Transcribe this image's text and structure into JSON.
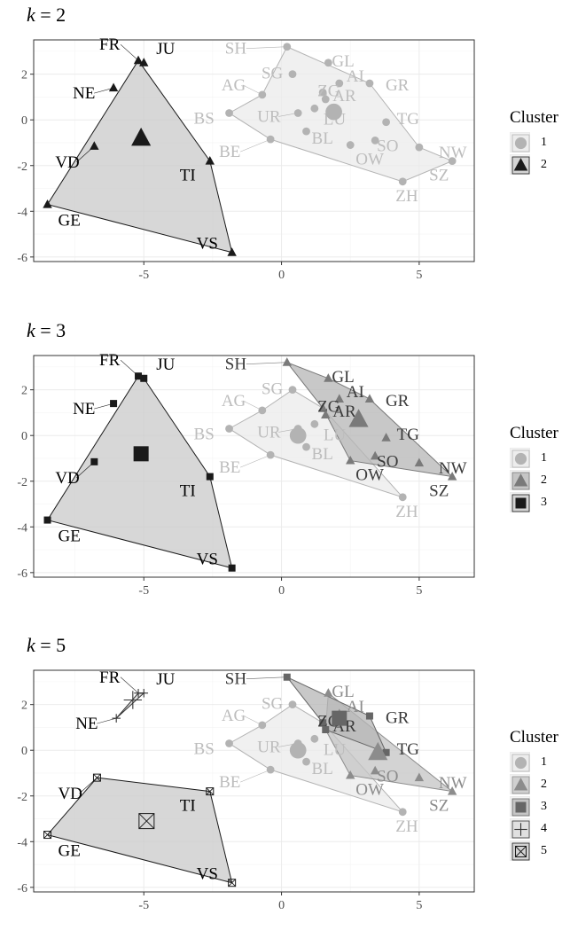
{
  "chart_data": [
    {
      "type": "scatter",
      "title_var": "k",
      "title_value": "= 2",
      "xlim": [
        -9,
        7
      ],
      "ylim": [
        -6.2,
        3.5
      ],
      "xticks": [
        "-5",
        "0",
        "5"
      ],
      "xtick_values": [
        -5,
        0,
        5
      ],
      "yticks": [
        "2",
        "0",
        "-2",
        "-4",
        "-6"
      ],
      "ytick_values": [
        2,
        0,
        -2,
        -4,
        -6
      ],
      "legend_title": "Cluster",
      "legend": [
        {
          "label": "1",
          "shape": "circle",
          "color": "#b3b3b3"
        },
        {
          "label": "2",
          "shape": "triangle",
          "color": "#1a1a1a"
        }
      ],
      "clusters": [
        {
          "id": 1,
          "color": "#b3b3b3",
          "fill": "#ebebeb",
          "text_color": "#bdbdbd",
          "shape": "circle",
          "centroid": [
            1.9,
            0.35
          ],
          "hull": [
            "SH",
            "GR",
            "NW",
            "SZ",
            "ZH",
            "BE",
            "BS",
            "AG"
          ]
        },
        {
          "id": 2,
          "color": "#1a1a1a",
          "fill": "#c9c9c9",
          "text_color": "#000000",
          "shape": "triangle",
          "centroid": [
            -5.1,
            -0.8
          ],
          "hull": [
            "FR",
            "TI",
            "VS",
            "GE"
          ]
        }
      ],
      "points": [
        {
          "label": "SH",
          "x": 0.2,
          "y": 3.2,
          "c": 1
        },
        {
          "label": "GL",
          "x": 1.7,
          "y": 2.5,
          "c": 1
        },
        {
          "label": "AI",
          "x": 2.1,
          "y": 1.6,
          "c": 1
        },
        {
          "label": "GR",
          "x": 3.2,
          "y": 1.6,
          "c": 1
        },
        {
          "label": "SG",
          "x": 0.4,
          "y": 2.0,
          "c": 1
        },
        {
          "label": "ZG",
          "x": 1.5,
          "y": 1.2,
          "c": 1
        },
        {
          "label": "AR",
          "x": 1.6,
          "y": 0.9,
          "c": 1
        },
        {
          "label": "TG",
          "x": 3.8,
          "y": -0.1,
          "c": 1
        },
        {
          "label": "AG",
          "x": -0.7,
          "y": 1.1,
          "c": 1
        },
        {
          "label": "UR",
          "x": 0.6,
          "y": 0.3,
          "c": 1
        },
        {
          "label": "BS",
          "x": -1.9,
          "y": 0.3,
          "c": 1
        },
        {
          "label": "BL",
          "x": 0.9,
          "y": -0.5,
          "c": 1
        },
        {
          "label": "SO",
          "x": 3.4,
          "y": -0.9,
          "c": 1
        },
        {
          "label": "NW",
          "x": 5.0,
          "y": -1.2,
          "c": 1
        },
        {
          "label": "LU",
          "x": 1.2,
          "y": 0.5,
          "c": 1
        },
        {
          "label": "BE",
          "x": -0.4,
          "y": -0.85,
          "c": 1
        },
        {
          "label": "OW",
          "x": 2.5,
          "y": -1.1,
          "c": 1
        },
        {
          "label": "SZ",
          "x": 6.2,
          "y": -1.8,
          "c": 1
        },
        {
          "label": "ZH",
          "x": 4.4,
          "y": -2.7,
          "c": 1
        },
        {
          "label": "FR",
          "x": -5.2,
          "y": 2.6,
          "c": 2
        },
        {
          "label": "JU",
          "x": -5.0,
          "y": 2.5,
          "c": 2
        },
        {
          "label": "NE",
          "x": -6.1,
          "y": 1.4,
          "c": 2
        },
        {
          "label": "VD",
          "x": -6.8,
          "y": -1.15,
          "c": 2
        },
        {
          "label": "TI",
          "x": -2.6,
          "y": -1.8,
          "c": 2
        },
        {
          "label": "GE",
          "x": -8.5,
          "y": -3.7,
          "c": 2
        },
        {
          "label": "VS",
          "x": -1.8,
          "y": -5.8,
          "c": 2
        }
      ]
    },
    {
      "type": "scatter",
      "title_var": "k",
      "title_value": "= 3",
      "xlim": [
        -9,
        7
      ],
      "ylim": [
        -6.2,
        3.5
      ],
      "xticks": [
        "-5",
        "0",
        "5"
      ],
      "xtick_values": [
        -5,
        0,
        5
      ],
      "yticks": [
        "2",
        "0",
        "-2",
        "-4",
        "-6"
      ],
      "ytick_values": [
        2,
        0,
        -2,
        -4,
        -6
      ],
      "legend_title": "Cluster",
      "legend": [
        {
          "label": "1",
          "shape": "circle",
          "color": "#b3b3b3"
        },
        {
          "label": "2",
          "shape": "triangle",
          "color": "#7a7a7a"
        },
        {
          "label": "3",
          "shape": "square",
          "color": "#1a1a1a"
        }
      ],
      "clusters": [
        {
          "id": 1,
          "color": "#b3b3b3",
          "fill": "#ebebeb",
          "text_color": "#bdbdbd",
          "shape": "circle",
          "centroid": [
            0.6,
            0.0
          ],
          "hull": [
            "SG",
            "ZG",
            "ZH",
            "BE",
            "BS",
            "AG"
          ]
        },
        {
          "id": 2,
          "color": "#7a7a7a",
          "fill": "#b5b5b5",
          "text_color": "#3a3a3a",
          "shape": "triangle",
          "centroid": [
            2.8,
            0.7
          ],
          "hull": [
            "SH",
            "GL",
            "GR",
            "SZ",
            "OW",
            "ZG"
          ]
        },
        {
          "id": 3,
          "color": "#1a1a1a",
          "fill": "#c9c9c9",
          "text_color": "#000000",
          "shape": "square",
          "centroid": [
            -5.1,
            -0.8
          ],
          "hull": [
            "FR",
            "JU",
            "TI",
            "VS",
            "GE"
          ]
        }
      ],
      "points": [
        {
          "label": "SH",
          "x": 0.2,
          "y": 3.2,
          "c": 2
        },
        {
          "label": "GL",
          "x": 1.7,
          "y": 2.5,
          "c": 2
        },
        {
          "label": "AI",
          "x": 2.1,
          "y": 1.6,
          "c": 2
        },
        {
          "label": "GR",
          "x": 3.2,
          "y": 1.6,
          "c": 2
        },
        {
          "label": "ZG",
          "x": 1.5,
          "y": 1.2,
          "c": 2
        },
        {
          "label": "AR",
          "x": 1.6,
          "y": 0.9,
          "c": 2
        },
        {
          "label": "TG",
          "x": 3.8,
          "y": -0.1,
          "c": 2
        },
        {
          "label": "SO",
          "x": 3.4,
          "y": -0.9,
          "c": 2
        },
        {
          "label": "NW",
          "x": 5.0,
          "y": -1.2,
          "c": 2
        },
        {
          "label": "OW",
          "x": 2.5,
          "y": -1.1,
          "c": 2
        },
        {
          "label": "SZ",
          "x": 6.2,
          "y": -1.8,
          "c": 2
        },
        {
          "label": "SG",
          "x": 0.4,
          "y": 2.0,
          "c": 1
        },
        {
          "label": "AG",
          "x": -0.7,
          "y": 1.1,
          "c": 1
        },
        {
          "label": "UR",
          "x": 0.6,
          "y": 0.3,
          "c": 1
        },
        {
          "label": "BS",
          "x": -1.9,
          "y": 0.3,
          "c": 1
        },
        {
          "label": "BL",
          "x": 0.9,
          "y": -0.5,
          "c": 1
        },
        {
          "label": "LU",
          "x": 1.2,
          "y": 0.5,
          "c": 1
        },
        {
          "label": "BE",
          "x": -0.4,
          "y": -0.85,
          "c": 1
        },
        {
          "label": "ZH",
          "x": 4.4,
          "y": -2.7,
          "c": 1
        },
        {
          "label": "FR",
          "x": -5.2,
          "y": 2.6,
          "c": 3
        },
        {
          "label": "JU",
          "x": -5.0,
          "y": 2.5,
          "c": 3
        },
        {
          "label": "NE",
          "x": -6.1,
          "y": 1.4,
          "c": 3
        },
        {
          "label": "VD",
          "x": -6.8,
          "y": -1.15,
          "c": 3
        },
        {
          "label": "TI",
          "x": -2.6,
          "y": -1.8,
          "c": 3
        },
        {
          "label": "GE",
          "x": -8.5,
          "y": -3.7,
          "c": 3
        },
        {
          "label": "VS",
          "x": -1.8,
          "y": -5.8,
          "c": 3
        }
      ]
    },
    {
      "type": "scatter",
      "title_var": "k",
      "title_value": "= 5",
      "xlim": [
        -9,
        7
      ],
      "ylim": [
        -6.2,
        3.5
      ],
      "xticks": [
        "-5",
        "0",
        "5"
      ],
      "xtick_values": [
        -5,
        0,
        5
      ],
      "yticks": [
        "2",
        "0",
        "-2",
        "-4",
        "-6"
      ],
      "ytick_values": [
        2,
        0,
        -2,
        -4,
        -6
      ],
      "legend_title": "Cluster",
      "legend": [
        {
          "label": "1",
          "shape": "circle",
          "color": "#b3b3b3"
        },
        {
          "label": "2",
          "shape": "triangle",
          "color": "#8c8c8c"
        },
        {
          "label": "3",
          "shape": "square",
          "color": "#666666"
        },
        {
          "label": "4",
          "shape": "plus",
          "color": "#333333"
        },
        {
          "label": "5",
          "shape": "boxx",
          "color": "#1a1a1a"
        }
      ],
      "clusters": [
        {
          "id": 1,
          "color": "#b3b3b3",
          "fill": "#ebebeb",
          "text_color": "#bdbdbd",
          "shape": "circle",
          "centroid": [
            0.6,
            0.0
          ],
          "hull": [
            "SG",
            "ZG",
            "ZH",
            "BE",
            "BS",
            "AG"
          ]
        },
        {
          "id": 2,
          "color": "#8c8c8c",
          "fill": "#c4c4c4",
          "text_color": "#8c8c8c",
          "shape": "triangle",
          "centroid": [
            3.5,
            -0.1
          ],
          "hull": [
            "GL",
            "SZ",
            "OW",
            "AR"
          ]
        },
        {
          "id": 3,
          "color": "#666666",
          "fill": "#b5b5b5",
          "text_color": "#3a3a3a",
          "shape": "square",
          "centroid": [
            2.1,
            1.4
          ],
          "hull": [
            "SH",
            "GR",
            "TG",
            "AR",
            "ZG"
          ]
        },
        {
          "id": 4,
          "color": "#333333",
          "fill": "#d9d9d9",
          "text_color": "#000000",
          "shape": "plus",
          "centroid": [
            -5.4,
            2.2
          ],
          "hull": [
            "FR",
            "JU",
            "NE"
          ]
        },
        {
          "id": 5,
          "color": "#1a1a1a",
          "fill": "#c9c9c9",
          "text_color": "#000000",
          "shape": "boxx",
          "centroid": [
            -4.9,
            -3.1
          ],
          "hull": [
            "VD",
            "TI",
            "VS",
            "GE"
          ]
        }
      ],
      "points": [
        {
          "label": "SH",
          "x": 0.2,
          "y": 3.2,
          "c": 3
        },
        {
          "label": "GR",
          "x": 3.2,
          "y": 1.5,
          "c": 3
        },
        {
          "label": "ZG",
          "x": 1.5,
          "y": 1.2,
          "c": 3
        },
        {
          "label": "AR",
          "x": 1.6,
          "y": 0.9,
          "c": 3
        },
        {
          "label": "TG",
          "x": 3.8,
          "y": -0.1,
          "c": 3
        },
        {
          "label": "GL",
          "x": 1.7,
          "y": 2.5,
          "c": 2
        },
        {
          "label": "AI",
          "x": 2.1,
          "y": 1.6,
          "c": 2
        },
        {
          "label": "SO",
          "x": 3.4,
          "y": -0.9,
          "c": 2
        },
        {
          "label": "NW",
          "x": 5.0,
          "y": -1.2,
          "c": 2
        },
        {
          "label": "OW",
          "x": 2.5,
          "y": -1.1,
          "c": 2
        },
        {
          "label": "SZ",
          "x": 6.2,
          "y": -1.8,
          "c": 2
        },
        {
          "label": "SG",
          "x": 0.4,
          "y": 2.0,
          "c": 1
        },
        {
          "label": "AG",
          "x": -0.7,
          "y": 1.1,
          "c": 1
        },
        {
          "label": "UR",
          "x": 0.6,
          "y": 0.3,
          "c": 1
        },
        {
          "label": "BS",
          "x": -1.9,
          "y": 0.3,
          "c": 1
        },
        {
          "label": "BL",
          "x": 0.9,
          "y": -0.5,
          "c": 1
        },
        {
          "label": "LU",
          "x": 1.2,
          "y": 0.5,
          "c": 1
        },
        {
          "label": "BE",
          "x": -0.4,
          "y": -0.85,
          "c": 1
        },
        {
          "label": "ZH",
          "x": 4.4,
          "y": -2.7,
          "c": 1
        },
        {
          "label": "FR",
          "x": -5.2,
          "y": 2.5,
          "c": 4
        },
        {
          "label": "JU",
          "x": -5.0,
          "y": 2.5,
          "c": 4
        },
        {
          "label": "NE",
          "x": -6.0,
          "y": 1.4,
          "c": 4
        },
        {
          "label": "VD",
          "x": -6.7,
          "y": -1.2,
          "c": 5
        },
        {
          "label": "TI",
          "x": -2.6,
          "y": -1.8,
          "c": 5
        },
        {
          "label": "GE",
          "x": -8.5,
          "y": -3.7,
          "c": 5
        },
        {
          "label": "VS",
          "x": -1.8,
          "y": -5.8,
          "c": 5
        }
      ]
    }
  ]
}
